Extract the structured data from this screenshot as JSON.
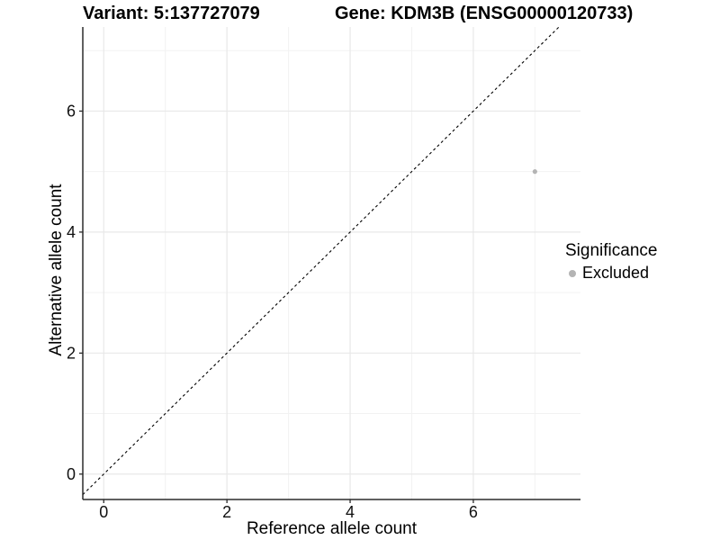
{
  "title": {
    "variant": "Variant: 5:137727079",
    "gene": "Gene: KDM3B (ENSG00000120733)"
  },
  "legend": {
    "title": "Significance",
    "items": [
      {
        "label": "Excluded",
        "color": "#b4b4b4"
      }
    ]
  },
  "chart_data": {
    "type": "scatter",
    "xlabel": "Reference allele count",
    "ylabel": "Alternative allele count",
    "xlim": [
      -0.34,
      7.74
    ],
    "ylim": [
      -0.42,
      7.39
    ],
    "x_ticks": [
      0,
      2,
      4,
      6
    ],
    "y_ticks": [
      0,
      2,
      4,
      6
    ],
    "x_minor_ticks": [
      1,
      3,
      5,
      7
    ],
    "y_minor_ticks": [
      1,
      3,
      5,
      7
    ],
    "grid": true,
    "legend_position": "right",
    "series": [
      {
        "name": "Excluded",
        "color": "#b4b4b4",
        "points": [
          {
            "x": 7,
            "y": 5
          }
        ]
      }
    ],
    "reference_line": {
      "type": "identity",
      "slope": 1,
      "intercept": 0,
      "style": "dashed",
      "color": "#000000"
    },
    "colors": {
      "axis_line": "#2b2b2b",
      "tick_label": "#111111",
      "grid_major": "#e8e8e8",
      "grid_minor": "#f2f2f2",
      "background": "#ffffff"
    }
  }
}
